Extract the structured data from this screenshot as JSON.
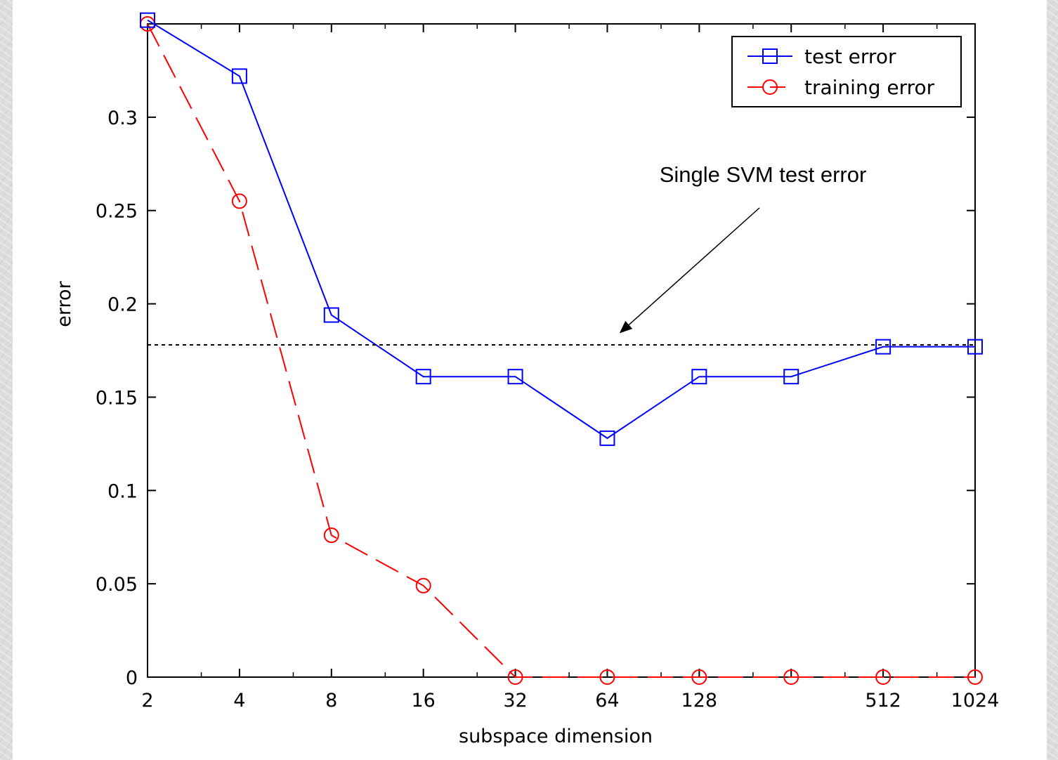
{
  "colors": {
    "test_series": "#0000ff",
    "training_series": "#ff0000",
    "reference_line": "#000000",
    "slide_background": "#dcdcdc"
  },
  "chart_data": {
    "type": "line",
    "title": "",
    "xlabel": "subspace dimension",
    "ylabel": "error",
    "x_scale": "log2",
    "xlim": [
      2,
      1024
    ],
    "ylim": [
      0,
      0.35
    ],
    "grid": false,
    "legend_position": "top-right",
    "x_tick_labels": [
      "2",
      "4",
      "8",
      "16",
      "32",
      "64",
      "128",
      "512",
      "1024"
    ],
    "y_tick_labels": [
      "0",
      "0.05",
      "0.1",
      "0.15",
      "0.2",
      "0.25",
      "0.3"
    ],
    "y_ticks": [
      0,
      0.05,
      0.1,
      0.15,
      0.2,
      0.25,
      0.3
    ],
    "x": [
      2,
      4,
      8,
      16,
      32,
      64,
      128,
      256,
      512,
      1024
    ],
    "series": [
      {
        "name": "test error",
        "marker": "square",
        "line_style": "solid",
        "values": [
          0.352,
          0.322,
          0.194,
          0.161,
          0.161,
          0.128,
          0.161,
          0.161,
          0.177,
          0.177
        ]
      },
      {
        "name": "training error",
        "marker": "circle",
        "line_style": "dashed",
        "values": [
          0.35,
          0.255,
          0.076,
          0.049,
          0.0,
          0.0,
          0.0,
          0.0,
          0.0,
          0.0
        ]
      }
    ],
    "reference_line": {
      "y": 0.178,
      "style": "dotted"
    },
    "annotations": [
      {
        "text": "Single SVM test error",
        "arrow_target": {
          "x": 71,
          "y": 0.185
        }
      }
    ]
  }
}
